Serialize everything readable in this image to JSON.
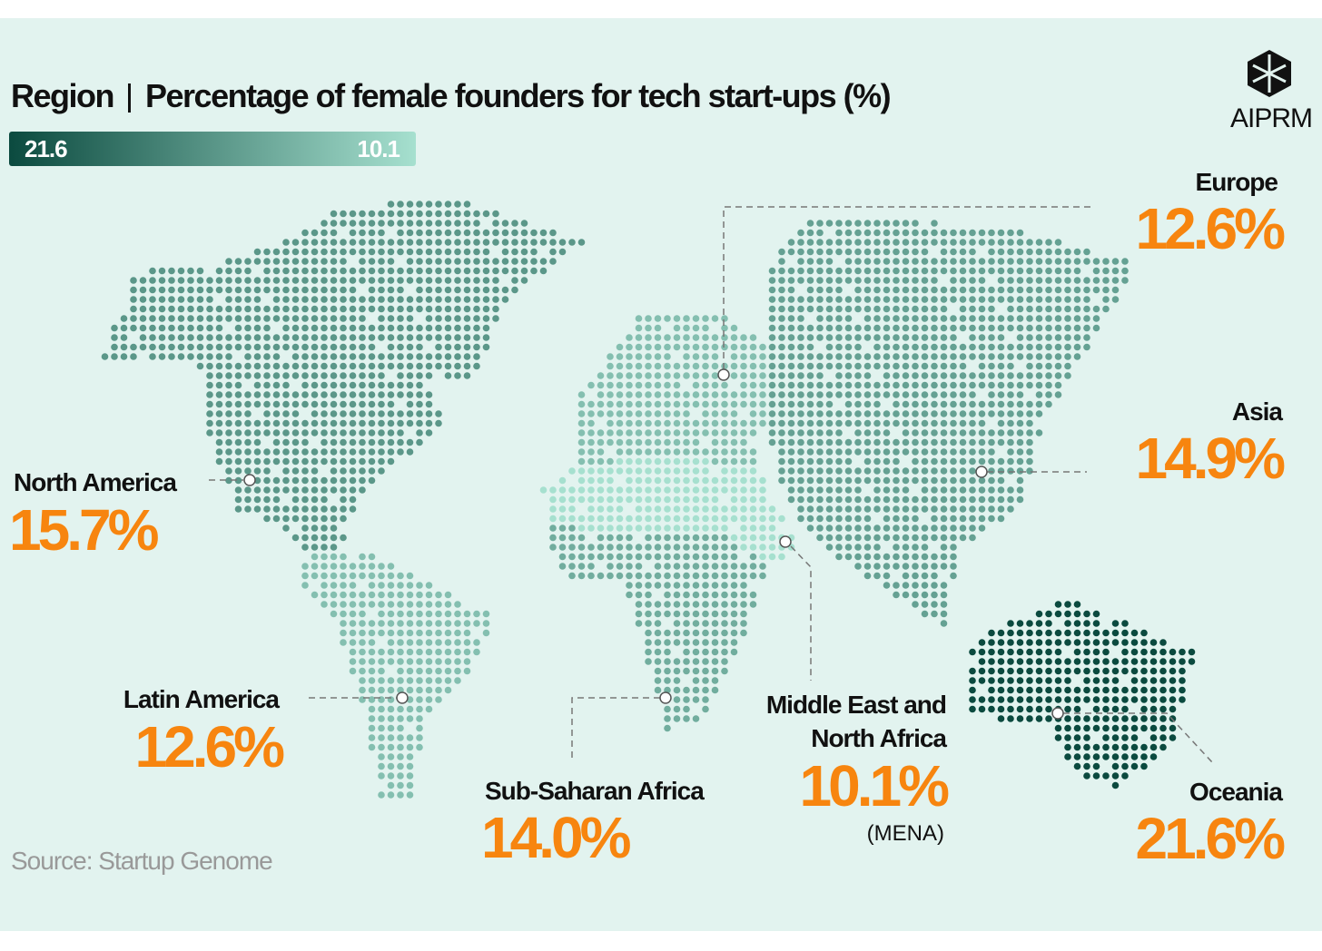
{
  "chart_data": {
    "type": "dotmap",
    "title_prefix": "Region",
    "title": "Percentage of female founders for tech start-ups (%)",
    "colorbar": {
      "ticks": [
        21.6,
        10.1
      ],
      "colors": [
        "#0b4a3f",
        "#a6e0cf"
      ]
    },
    "categories": [
      "North America",
      "Latin America",
      "Sub-Saharan Africa",
      "Middle East and North Africa",
      "Europe",
      "Asia",
      "Oceania"
    ],
    "values": [
      15.7,
      12.6,
      14.0,
      10.1,
      12.6,
      14.9,
      21.6
    ],
    "value_labels": [
      "15.7%",
      "12.6%",
      "14.0%",
      "10.1%",
      "12.6%",
      "14.9%",
      "21.6%"
    ],
    "annotation": "(MENA)",
    "source": "Source: Startup Genome",
    "logo": "AIPRM"
  }
}
